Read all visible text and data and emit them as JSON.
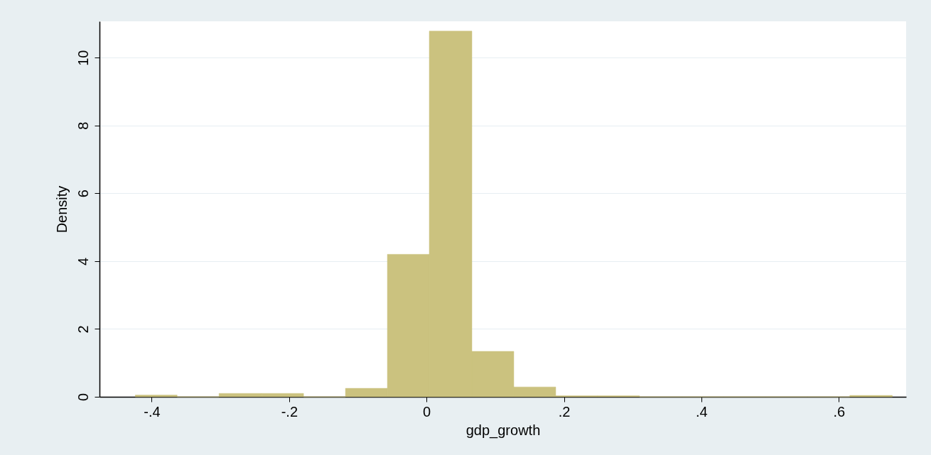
{
  "chart_data": {
    "type": "histogram",
    "xlabel": "gdp_growth",
    "ylabel": "Density",
    "bins": [
      -0.424,
      -0.363,
      -0.302,
      -0.24,
      -0.179,
      -0.118,
      -0.057,
      0.004,
      0.066,
      0.127,
      0.188,
      0.249,
      0.31,
      0.372,
      0.433,
      0.494,
      0.555,
      0.616,
      0.678
    ],
    "values": [
      0.05,
      0,
      0.1,
      0.1,
      0,
      0.25,
      4.2,
      10.78,
      1.34,
      0.29,
      0.03,
      0.03,
      0,
      0,
      0,
      0,
      0,
      0.04
    ],
    "color": "#cbc27f",
    "xlim": [
      -0.476,
      0.698
    ],
    "xticks": [
      {
        "value": -0.4,
        "label": "-.4"
      },
      {
        "value": -0.2,
        "label": "-.2"
      },
      0,
      {
        "value": 0.2,
        "label": ".2"
      },
      {
        "value": 0.4,
        "label": ".4"
      },
      {
        "value": 0.6,
        "label": ".6"
      }
    ],
    "ylim": [
      0,
      11.07
    ],
    "yticks": [
      0,
      2,
      4,
      6,
      8,
      10
    ],
    "grid": "y"
  }
}
